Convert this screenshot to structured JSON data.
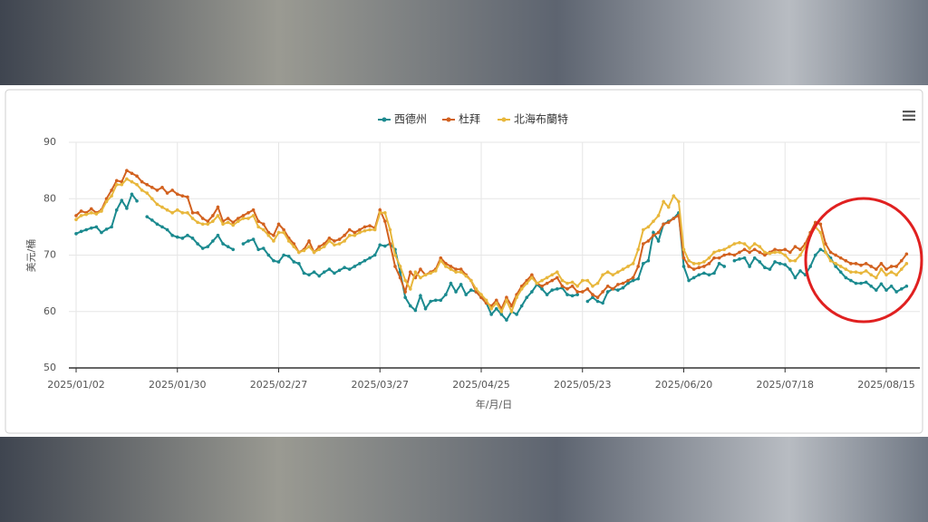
{
  "chart_data": {
    "type": "line",
    "x_label": "年/月/日",
    "y_label": "美元/桶",
    "categories": [
      "2025/01/02",
      null,
      null,
      null,
      null,
      null,
      null,
      null,
      null,
      null,
      null,
      null,
      null,
      null,
      null,
      null,
      null,
      null,
      null,
      null,
      "2025/01/30",
      null,
      null,
      null,
      null,
      null,
      null,
      null,
      null,
      null,
      null,
      null,
      null,
      null,
      null,
      null,
      null,
      null,
      null,
      null,
      "2025/02/27",
      null,
      null,
      null,
      null,
      null,
      null,
      null,
      null,
      null,
      null,
      null,
      null,
      null,
      null,
      null,
      null,
      null,
      null,
      null,
      "2025/03/27",
      null,
      null,
      null,
      null,
      null,
      null,
      null,
      null,
      null,
      null,
      null,
      null,
      null,
      null,
      null,
      null,
      null,
      null,
      null,
      "2025/04/25",
      null,
      null,
      null,
      null,
      null,
      null,
      null,
      null,
      null,
      null,
      null,
      null,
      null,
      null,
      null,
      null,
      null,
      null,
      null,
      "2025/05/23",
      null,
      null,
      null,
      null,
      null,
      null,
      null,
      null,
      null,
      null,
      null,
      null,
      null,
      null,
      null,
      null,
      null,
      null,
      null,
      "2025/06/20",
      null,
      null,
      null,
      null,
      null,
      null,
      null,
      null,
      null,
      null,
      null,
      null,
      null,
      null,
      null,
      null,
      null,
      null,
      null,
      "2025/07/18",
      null,
      null,
      null,
      null,
      null,
      null,
      null,
      null,
      null,
      null,
      null,
      null,
      null,
      null,
      null,
      null,
      null,
      null,
      null,
      "2025/08/15",
      null,
      null,
      null,
      null
    ],
    "series": [
      {
        "name": "西德州",
        "color": "#1b8a8f",
        "values": [
          73.8,
          74.2,
          74.5,
          74.8,
          75,
          74,
          74.6,
          75,
          78,
          79.7,
          78.3,
          80.8,
          79.6,
          null,
          76.8,
          76.2,
          75.5,
          75,
          74.5,
          73.5,
          73.2,
          73,
          73.5,
          73,
          72,
          71.2,
          71.5,
          72.5,
          73.5,
          72,
          71.5,
          71,
          null,
          72,
          72.5,
          72.8,
          71,
          71.2,
          70,
          69,
          68.8,
          70,
          69.8,
          68.8,
          68.5,
          66.8,
          66.5,
          67,
          66.3,
          67,
          67.5,
          66.8,
          67.3,
          67.8,
          67.5,
          68,
          68.5,
          69,
          69.5,
          70,
          71.8,
          71.6,
          72,
          71,
          67,
          62.5,
          61,
          60.2,
          62.8,
          60.5,
          61.8,
          62,
          62,
          63,
          65,
          63.5,
          64.8,
          63,
          63.8,
          63.5,
          62.5,
          61.5,
          59.5,
          60.5,
          59.5,
          58.5,
          60,
          59.5,
          61,
          62.5,
          63.5,
          64.8,
          64,
          63,
          63.8,
          64,
          64.2,
          63,
          62.8,
          63,
          null,
          61.8,
          62.5,
          61.8,
          61.5,
          63.5,
          64,
          63.8,
          64.2,
          65,
          65.5,
          65.8,
          68.5,
          69,
          74,
          72.5,
          75.5,
          76,
          76.5,
          77.5,
          68,
          65.5,
          66,
          66.5,
          66.8,
          66.5,
          66.8,
          68.5,
          68,
          null,
          69,
          69.3,
          69.5,
          68,
          69.5,
          68.8,
          67.8,
          67.5,
          68.8,
          68.5,
          68.3,
          67.5,
          66,
          67.2,
          66.5,
          68,
          70,
          71,
          70.5,
          69.5,
          68,
          67,
          66,
          65.5,
          65,
          65,
          65.2,
          64.5,
          63.8,
          64.9,
          63.8,
          64.5,
          63.5,
          64,
          64.5
        ]
      },
      {
        "name": "杜拜",
        "color": "#d2611f",
        "values": [
          77,
          77.8,
          77.5,
          78.2,
          77.5,
          78,
          80,
          81.5,
          83.2,
          83,
          85,
          84.5,
          84,
          83,
          82.5,
          82,
          81.5,
          82,
          81,
          81.5,
          80.8,
          80.5,
          80.3,
          77.5,
          77.5,
          76.5,
          76,
          77,
          78.5,
          76,
          76.5,
          75.8,
          76.5,
          77,
          77.5,
          78,
          76,
          75.5,
          74,
          73.5,
          75.5,
          74.5,
          73,
          72,
          70.5,
          71,
          72.5,
          70.5,
          71.5,
          72,
          73,
          72.5,
          72.8,
          73.5,
          74.5,
          74,
          74.5,
          75,
          75.2,
          74.8,
          78,
          76,
          72,
          68,
          66,
          63.5,
          67,
          66,
          67.5,
          66.5,
          67,
          67.5,
          69.5,
          68.5,
          68,
          67.5,
          67.5,
          66.5,
          65.5,
          63.5,
          62.5,
          61.5,
          61,
          62,
          60.5,
          62.5,
          61,
          63,
          64.5,
          65.5,
          66.5,
          65,
          64.5,
          65,
          65.5,
          66,
          64.5,
          64,
          64.5,
          63.5,
          63.5,
          64,
          63,
          62.5,
          63.5,
          64.5,
          64,
          64.8,
          65,
          65.5,
          66,
          68,
          72,
          72.5,
          73.5,
          74,
          75.5,
          75.8,
          76.5,
          77,
          69.5,
          68,
          67.5,
          67.8,
          68,
          68.5,
          69.5,
          69.5,
          70,
          70.2,
          70,
          70.5,
          71,
          70.5,
          71,
          70.5,
          70,
          70.5,
          71,
          70.8,
          71,
          70.5,
          71.5,
          71,
          72,
          74,
          75.8,
          75.5,
          72,
          70.5,
          70,
          69.5,
          69,
          68.5,
          68.5,
          68.2,
          68.5,
          68,
          67.5,
          68.5,
          67.5,
          68,
          68,
          69,
          70.2
        ]
      },
      {
        "name": "北海布蘭特",
        "color": "#e8b73c",
        "values": [
          76.3,
          77,
          77.2,
          77.5,
          77.3,
          77.8,
          79.5,
          80.5,
          82.5,
          82.5,
          83.5,
          83,
          82.5,
          81.5,
          81,
          80,
          79,
          78.5,
          78,
          77.5,
          78,
          77.5,
          77.5,
          76.5,
          75.8,
          75.5,
          75.5,
          76,
          77,
          75.5,
          75.8,
          75.3,
          76,
          76.5,
          76.5,
          77,
          75,
          74.5,
          73.5,
          72.5,
          74,
          74,
          72.5,
          71.5,
          70.5,
          70.8,
          71.5,
          70.5,
          71,
          71.5,
          72.5,
          71.8,
          72,
          72.5,
          73.5,
          73.5,
          74,
          74.3,
          74.5,
          74.5,
          77.5,
          77.5,
          74.5,
          70,
          68,
          65.5,
          64,
          67,
          66,
          66.5,
          66.8,
          67.2,
          69,
          68,
          67.5,
          67,
          67,
          66.3,
          65.5,
          64,
          63,
          62,
          60.5,
          61.5,
          60,
          62,
          60,
          62.5,
          64,
          65,
          66,
          65,
          65.5,
          66,
          66.5,
          67,
          65.5,
          65,
          65.2,
          64.5,
          65.5,
          65.5,
          64.5,
          65,
          66.5,
          67,
          66.5,
          67,
          67.5,
          68,
          68.5,
          71,
          74.5,
          75,
          76,
          77,
          79.5,
          78.5,
          80.5,
          79.5,
          71,
          69,
          68.5,
          68.5,
          68.8,
          69.5,
          70.5,
          70.8,
          71,
          71.5,
          72,
          72.2,
          72,
          71.2,
          72,
          71.5,
          70.5,
          70.3,
          70.5,
          70.5,
          70,
          69,
          69,
          70,
          71.5,
          73.5,
          75,
          74,
          70.5,
          69,
          68.5,
          68,
          67.5,
          67,
          67,
          66.8,
          67.2,
          66.5,
          66,
          67.5,
          66.5,
          67,
          66.5,
          67.5,
          68.5
        ]
      }
    ],
    "ylim": [
      50,
      90
    ],
    "yticks": [
      50,
      60,
      70,
      80,
      90
    ],
    "grid": true,
    "legend": "top"
  }
}
